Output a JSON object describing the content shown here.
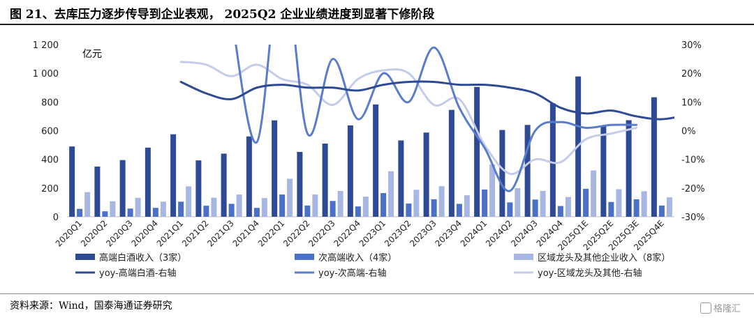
{
  "title": "图 21、去库压力逐步传导到企业表观， 2025Q2 企业业绩进度到显著下修阶段",
  "source": "资料来源：Wind，国泰海通证券研究",
  "watermark": "格隆汇",
  "chart_data": {
    "type": "bar",
    "unit_label": "亿元",
    "categories": [
      "2020Q1",
      "2020Q2",
      "2020Q3",
      "2020Q4",
      "2021Q1",
      "2021Q2",
      "2021Q3",
      "2021Q4",
      "2022Q1",
      "2022Q2",
      "2022Q3",
      "2022Q4",
      "2023Q1",
      "2023Q2",
      "2023Q3",
      "2023Q4",
      "2024Q1",
      "2024Q2",
      "2024Q3",
      "2024Q4",
      "2025Q1E",
      "2025Q2E",
      "2025Q3E",
      "2025Q4E"
    ],
    "y_left": {
      "min": 0,
      "max": 1200,
      "ticks": [
        0,
        200,
        400,
        600,
        800,
        1000,
        1200
      ],
      "tick_labels": [
        "0",
        "200",
        "400",
        "600",
        "800",
        "1 000",
        "1 200"
      ]
    },
    "y_right": {
      "min": -30,
      "max": 30,
      "ticks": [
        -30,
        -20,
        -10,
        0,
        10,
        20,
        30
      ],
      "tick_labels": [
        "-30%",
        "-20%",
        "-10%",
        "0%",
        "10%",
        "20%",
        "30%"
      ]
    },
    "grid": false,
    "legend_position": "bottom",
    "bar_series": [
      {
        "name": "高端白酒收入（3家）",
        "color": "#2E4A94",
        "values": [
          490,
          350,
          395,
          482,
          575,
          393,
          440,
          560,
          672,
          452,
          510,
          637,
          783,
          532,
          587,
          745,
          905,
          605,
          640,
          790,
          978,
          636,
          673,
          833
        ]
      },
      {
        "name": "次高端收入（4家）",
        "color": "#4A70C8",
        "values": [
          55,
          38,
          57,
          62,
          105,
          77,
          90,
          62,
          155,
          78,
          110,
          72,
          165,
          92,
          122,
          90,
          190,
          100,
          120,
          75,
          195,
          103,
          122,
          78
        ]
      },
      {
        "name": "区域龙头及其他企业收入（8家）",
        "color": "#A8B6E2",
        "values": [
          172,
          108,
          132,
          105,
          212,
          133,
          155,
          130,
          265,
          155,
          180,
          140,
          317,
          188,
          213,
          150,
          365,
          200,
          180,
          138,
          323,
          192,
          178,
          135
        ]
      }
    ],
    "line_series": [
      {
        "name": "yoy-高端白酒-右轴",
        "color": "#2E4A94",
        "width": 3,
        "x_start_index": 4,
        "values": [
          17,
          13,
          11,
          15,
          16,
          15,
          15,
          14,
          16,
          17,
          17,
          16,
          16,
          15,
          13,
          8,
          6,
          7,
          5,
          4,
          5.5
        ]
      },
      {
        "name": "yoy-次高端-右轴",
        "color": "#5A7CCC",
        "width": 3,
        "x_start_index": 4,
        "values": [
          null,
          null,
          40,
          -4,
          60,
          -1,
          25,
          4,
          20,
          10,
          29,
          8,
          -6,
          -21,
          0,
          3,
          1,
          2,
          2
        ]
      },
      {
        "name": "yoy-区域龙头及其他-右轴",
        "color": "#C4CCEA",
        "width": 3,
        "x_start_index": 4,
        "values": [
          24,
          23,
          19,
          23,
          18,
          16,
          9,
          18,
          21,
          20,
          9,
          11,
          -5,
          -15,
          -10,
          -11,
          -3,
          -1,
          1
        ]
      }
    ]
  }
}
